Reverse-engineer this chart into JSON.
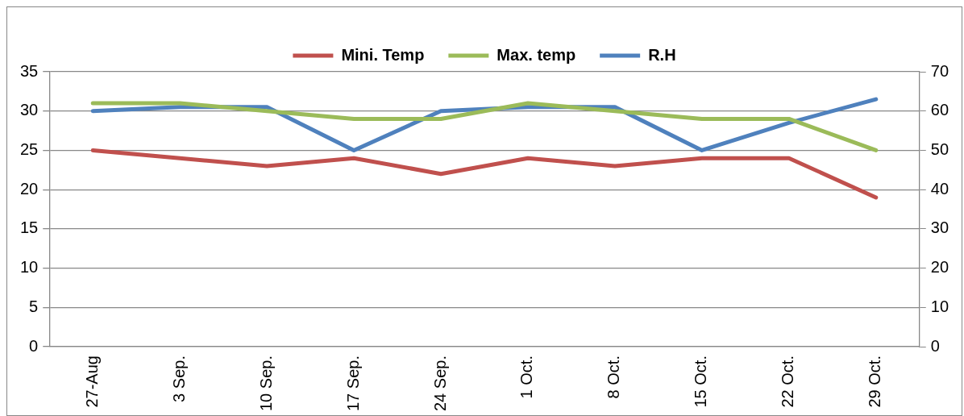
{
  "chart_data": {
    "type": "line",
    "categories": [
      "27-Aug",
      "3 Sep.",
      "10 Sep.",
      "17 Sep.",
      "24 Sep.",
      "1 Oct.",
      "8 Oct.",
      "15 Oct.",
      "22 Oct.",
      "29 Oct."
    ],
    "series": [
      {
        "name": "Mini. Temp",
        "color": "#c0504d",
        "values": [
          25,
          24,
          23,
          24,
          22,
          24,
          23,
          24,
          24,
          19
        ]
      },
      {
        "name": "Max. temp",
        "color": "#9bbb59",
        "values": [
          31,
          31,
          30,
          29,
          29,
          31,
          30,
          29,
          29,
          25
        ]
      },
      {
        "name": "R.H",
        "color": "#4f81bd",
        "axis": "y2",
        "values": [
          60,
          61,
          61,
          50,
          60,
          61,
          61,
          50,
          57,
          63
        ]
      }
    ],
    "ylim": [
      0,
      35
    ],
    "yticks": [
      0,
      5,
      10,
      15,
      20,
      25,
      30,
      35
    ],
    "y2lim": [
      0,
      70
    ],
    "y2ticks": [
      0,
      10,
      20,
      30,
      40,
      50,
      60,
      70
    ],
    "grid": "y",
    "legend": "top",
    "marker": "none",
    "line_style": "solid"
  }
}
